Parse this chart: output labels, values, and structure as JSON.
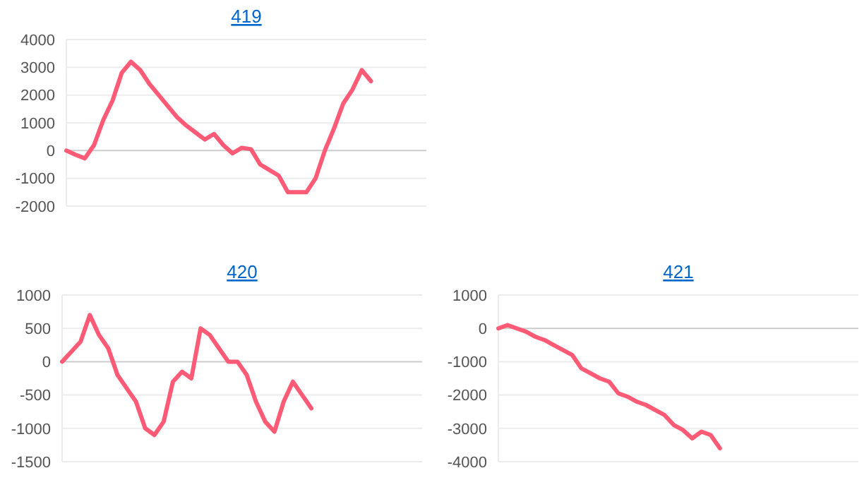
{
  "chart_data": [
    {
      "type": "line",
      "title": "419",
      "categories": [
        null,
        null,
        null,
        null,
        null,
        null,
        null,
        null,
        null,
        null,
        null,
        null,
        null,
        null,
        null,
        null,
        null,
        null,
        null,
        null,
        null,
        null,
        null,
        null,
        null,
        null,
        null,
        null,
        null,
        null,
        null,
        null,
        null,
        null,
        null,
        null,
        null,
        null,
        null,
        null
      ],
      "series": [
        {
          "color": "#ff5a76",
          "values": [
            0,
            -150,
            -280,
            200,
            1100,
            1800,
            2800,
            3200,
            2900,
            2400,
            2000,
            1600,
            1200,
            900,
            650,
            400,
            600,
            200,
            -100,
            100,
            50,
            -500,
            -700,
            -900,
            -1500,
            -1500,
            -1500,
            -1000,
            0,
            800,
            1700,
            2200,
            2900,
            2500,
            null,
            null,
            null,
            null,
            null,
            null
          ]
        }
      ],
      "ylim": [
        -2000,
        4000
      ],
      "yticks": [
        -2000,
        -1000,
        0,
        1000,
        2000,
        3000,
        4000
      ],
      "grid": "y",
      "tick_labels": "y"
    },
    {
      "type": "line",
      "title": "420",
      "categories": [
        null,
        null,
        null,
        null,
        null,
        null,
        null,
        null,
        null,
        null,
        null,
        null,
        null,
        null,
        null,
        null,
        null,
        null,
        null,
        null,
        null,
        null,
        null,
        null,
        null,
        null,
        null,
        null,
        null,
        null,
        null,
        null,
        null,
        null,
        null,
        null,
        null,
        null,
        null,
        null
      ],
      "series": [
        {
          "color": "#ff5a76",
          "values": [
            0,
            150,
            300,
            700,
            400,
            200,
            -200,
            -400,
            -600,
            -1000,
            -1100,
            -900,
            -300,
            -150,
            -250,
            500,
            400,
            200,
            0,
            0,
            -200,
            -600,
            -900,
            -1050,
            -600,
            -300,
            -500,
            -700,
            null,
            null,
            null,
            null,
            null,
            null,
            null,
            null,
            null,
            null,
            null,
            null
          ]
        }
      ],
      "ylim": [
        -1500,
        1000
      ],
      "yticks": [
        -1500,
        -1000,
        -500,
        0,
        500,
        1000
      ],
      "grid": "y",
      "tick_labels": "y"
    },
    {
      "type": "line",
      "title": "421",
      "categories": [
        null,
        null,
        null,
        null,
        null,
        null,
        null,
        null,
        null,
        null,
        null,
        null,
        null,
        null,
        null,
        null,
        null,
        null,
        null,
        null,
        null,
        null,
        null,
        null,
        null,
        null,
        null,
        null,
        null,
        null,
        null,
        null,
        null,
        null,
        null,
        null,
        null,
        null,
        null,
        null
      ],
      "series": [
        {
          "color": "#ff5a76",
          "values": [
            0,
            100,
            0,
            -100,
            -250,
            -350,
            -500,
            -650,
            -800,
            -1200,
            -1350,
            -1500,
            -1600,
            -1950,
            -2050,
            -2200,
            -2300,
            -2450,
            -2600,
            -2900,
            -3050,
            -3300,
            -3100,
            -3200,
            -3600,
            null,
            null,
            null,
            null,
            null,
            null,
            null,
            null,
            null,
            null,
            null,
            null,
            null,
            null,
            null
          ]
        }
      ],
      "ylim": [
        -4000,
        1000
      ],
      "yticks": [
        -4000,
        -3000,
        -2000,
        -1000,
        0,
        1000
      ],
      "grid": "y",
      "tick_labels": "y"
    }
  ]
}
